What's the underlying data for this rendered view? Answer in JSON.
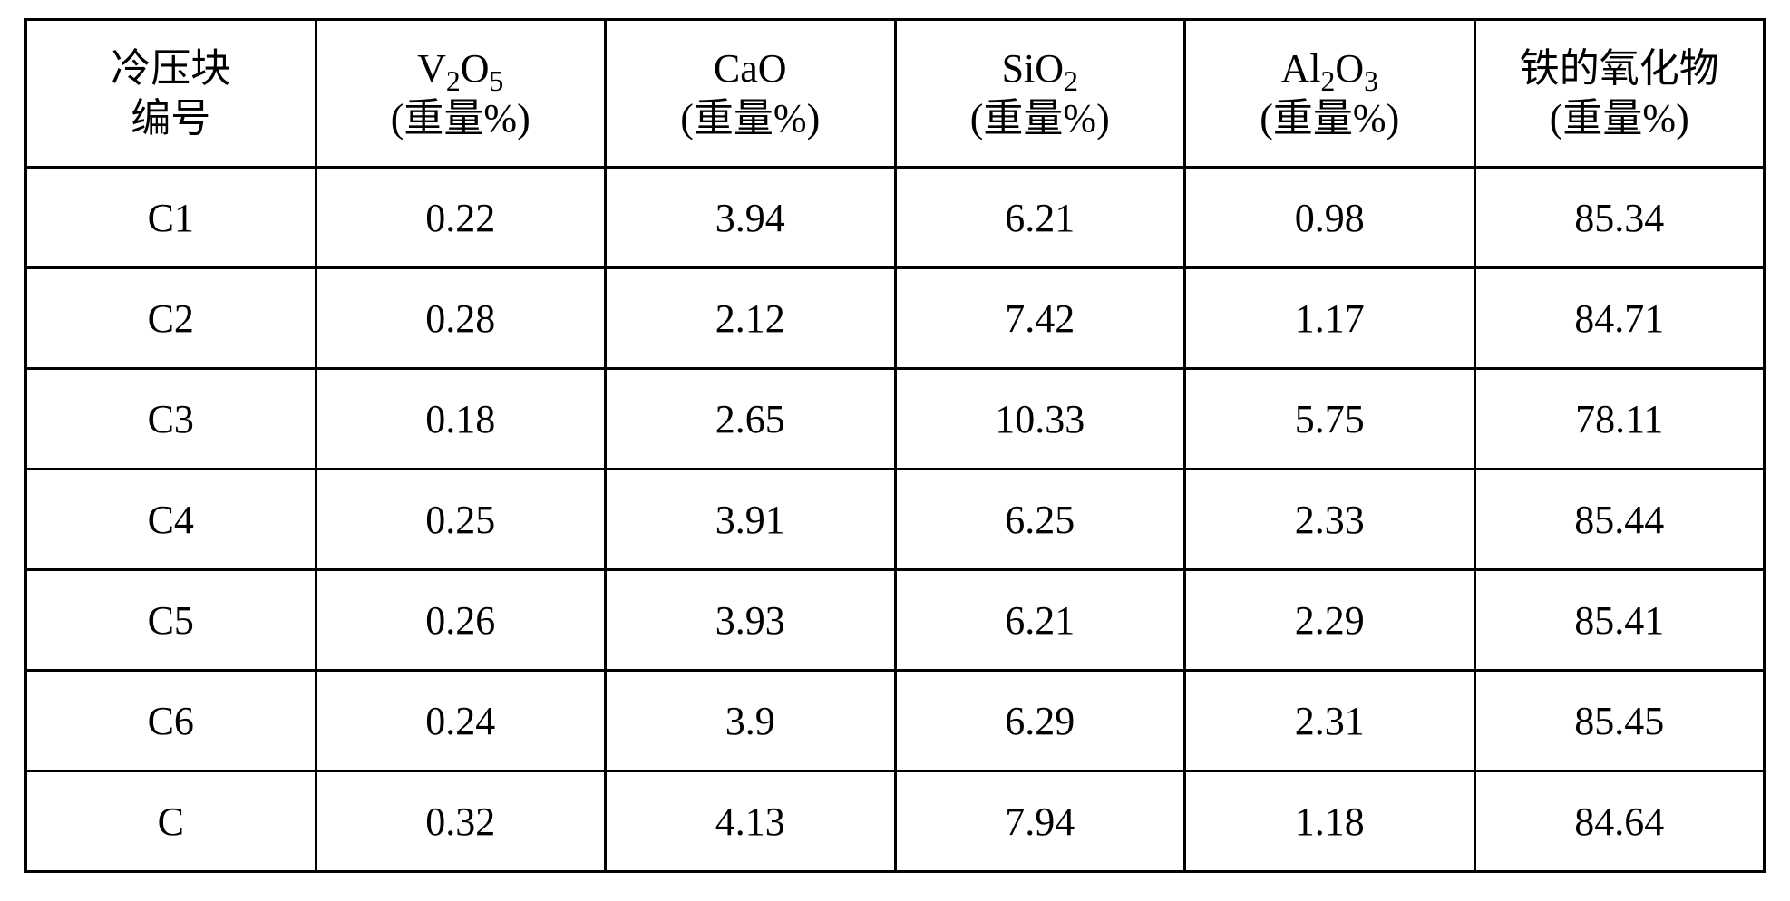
{
  "table": {
    "type": "table",
    "border_color": "#000000",
    "background_color": "#ffffff",
    "text_color": "#000000",
    "font": "Times New Roman / SimSun",
    "header_fontsize_pt": 33,
    "cell_fontsize_pt": 33,
    "col_widths_pct": [
      16.6,
      16.6,
      16.6,
      16.6,
      16.6,
      17.0
    ],
    "columns": [
      {
        "line1": "冷压块",
        "line2": "编号"
      },
      {
        "line1_html": "V<sub>2</sub>O<sub>5</sub>",
        "line2": "(重量%)"
      },
      {
        "line1_html": "CaO",
        "line2": "(重量%)"
      },
      {
        "line1_html": "SiO<sub>2</sub>",
        "line2": "(重量%)"
      },
      {
        "line1_html": "Al<sub>2</sub>O<sub>3</sub>",
        "line2": "(重量%)"
      },
      {
        "line1": "铁的氧化物",
        "line2": "(重量%)"
      }
    ],
    "rows": [
      [
        "C1",
        "0.22",
        "3.94",
        "6.21",
        "0.98",
        "85.34"
      ],
      [
        "C2",
        "0.28",
        "2.12",
        "7.42",
        "1.17",
        "84.71"
      ],
      [
        "C3",
        "0.18",
        "2.65",
        "10.33",
        "5.75",
        "78.11"
      ],
      [
        "C4",
        "0.25",
        "3.91",
        "6.25",
        "2.33",
        "85.44"
      ],
      [
        "C5",
        "0.26",
        "3.93",
        "6.21",
        "2.29",
        "85.41"
      ],
      [
        "C6",
        "0.24",
        "3.9",
        "6.29",
        "2.31",
        "85.45"
      ],
      [
        "C",
        "0.32",
        "4.13",
        "7.94",
        "1.18",
        "84.64"
      ]
    ]
  }
}
